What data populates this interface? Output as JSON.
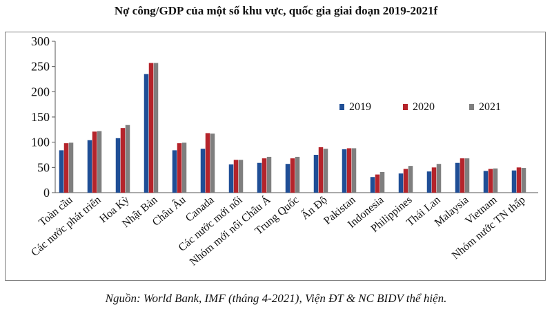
{
  "chart_data": {
    "type": "bar",
    "title": "Nợ công/GDP của một số khu vực, quốc gia giai đoạn 2019-2021f",
    "xlabel": "",
    "ylabel": "",
    "ylim": [
      0,
      300
    ],
    "yticks": [
      0,
      50,
      100,
      150,
      200,
      250,
      300
    ],
    "grid": false,
    "legend_position": "right",
    "categories": [
      "Toàn cầu",
      "Các nước phát triển",
      "Hoa Kỳ",
      "Nhật Bản",
      "Châu Âu",
      "Canada",
      "Các nước mới nổi",
      "Nhóm mới nổi Châu Á",
      "Trung Quốc",
      "Ấn Độ",
      "Pakistan",
      "Indonesia",
      "Philippines",
      "Thái Lan",
      "Malaysia",
      "Vietnam",
      "Nhóm nước TN thấp"
    ],
    "series": [
      {
        "name": "2019",
        "color": "#1f4e96",
        "values": [
          84,
          104,
          108,
          235,
          84,
          87,
          56,
          59,
          57,
          75,
          86,
          31,
          38,
          42,
          59,
          43,
          44
        ]
      },
      {
        "name": "2020",
        "color": "#b5242b",
        "values": [
          98,
          121,
          128,
          257,
          98,
          118,
          65,
          68,
          68,
          90,
          88,
          36,
          47,
          50,
          68,
          47,
          50
        ]
      },
      {
        "name": "2021",
        "color": "#7f7f7f",
        "values": [
          99,
          122,
          134,
          257,
          99,
          117,
          65,
          71,
          71,
          87,
          88,
          41,
          53,
          57,
          68,
          48,
          49
        ]
      }
    ]
  },
  "source_text": "Nguồn: World Bank, IMF (tháng 4-2021), Viện ĐT & NC BIDV thể hiện."
}
